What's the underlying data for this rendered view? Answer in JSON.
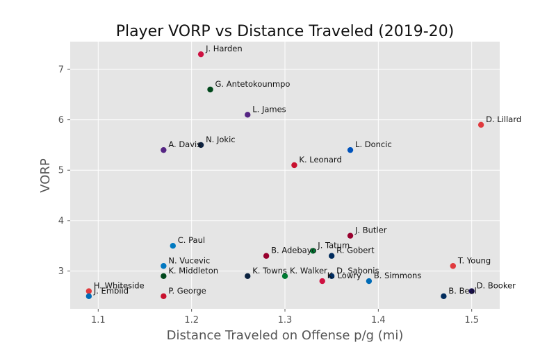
{
  "chart_data": {
    "type": "scatter",
    "title": "Player VORP vs Distance Traveled (2019-20)",
    "xlabel": "Distance Traveled on Offense p/g (mi)",
    "ylabel": "VORP",
    "xlim": [
      1.07,
      1.53
    ],
    "ylim": [
      2.25,
      7.55
    ],
    "xticks": [
      1.1,
      1.2,
      1.3,
      1.4,
      1.5
    ],
    "yticks": [
      3,
      4,
      5,
      6,
      7
    ],
    "xtick_labels": [
      "1.1",
      "1.2",
      "1.3",
      "1.4",
      "1.5"
    ],
    "ytick_labels": [
      "3",
      "4",
      "5",
      "6",
      "7"
    ],
    "grid": true,
    "points": [
      {
        "label": "J. Harden",
        "x": 1.21,
        "y": 7.3,
        "color": "#ce1141"
      },
      {
        "label": "G. Antetokounmpo",
        "x": 1.22,
        "y": 6.6,
        "color": "#00471b"
      },
      {
        "label": "L. James",
        "x": 1.26,
        "y": 6.1,
        "color": "#552583"
      },
      {
        "label": "D. Lillard",
        "x": 1.51,
        "y": 5.9,
        "color": "#e03a3e"
      },
      {
        "label": "A. Davis",
        "x": 1.17,
        "y": 5.4,
        "color": "#552583"
      },
      {
        "label": "N. Jokic",
        "x": 1.21,
        "y": 5.5,
        "color": "#0e2240"
      },
      {
        "label": "L. Doncic",
        "x": 1.37,
        "y": 5.4,
        "color": "#0053bc"
      },
      {
        "label": "K. Leonard",
        "x": 1.31,
        "y": 5.1,
        "color": "#c8102e"
      },
      {
        "label": "J. Butler",
        "x": 1.37,
        "y": 3.7,
        "color": "#98002e"
      },
      {
        "label": "C. Paul",
        "x": 1.18,
        "y": 3.5,
        "color": "#007ac1"
      },
      {
        "label": "J. Tatum",
        "x": 1.33,
        "y": 3.4,
        "color": "#007a33"
      },
      {
        "label": "B. Adebayo",
        "x": 1.28,
        "y": 3.3,
        "color": "#98002e"
      },
      {
        "label": "R. Gobert",
        "x": 1.35,
        "y": 3.3,
        "color": "#002b5c"
      },
      {
        "label": "N. Vucevic",
        "x": 1.17,
        "y": 3.1,
        "color": "#0077c0"
      },
      {
        "label": "T. Young",
        "x": 1.48,
        "y": 3.1,
        "color": "#e03a3e"
      },
      {
        "label": "K. Middleton",
        "x": 1.17,
        "y": 2.9,
        "color": "#00471b"
      },
      {
        "label": "K. Towns",
        "x": 1.26,
        "y": 2.9,
        "color": "#0c2340"
      },
      {
        "label": "K. Walker",
        "x": 1.3,
        "y": 2.9,
        "color": "#007a33"
      },
      {
        "label": "D. Sabonis",
        "x": 1.35,
        "y": 2.9,
        "color": "#002d62"
      },
      {
        "label": "K. Lowry",
        "x": 1.34,
        "y": 2.8,
        "color": "#ce1141"
      },
      {
        "label": "B. Simmons",
        "x": 1.39,
        "y": 2.8,
        "color": "#006bb6"
      },
      {
        "label": "H. Whiteside",
        "x": 1.09,
        "y": 2.6,
        "color": "#e03a3e"
      },
      {
        "label": "J. Embiid",
        "x": 1.09,
        "y": 2.5,
        "color": "#006bb6"
      },
      {
        "label": "P. George",
        "x": 1.17,
        "y": 2.5,
        "color": "#c8102e"
      },
      {
        "label": "B. Beal",
        "x": 1.47,
        "y": 2.5,
        "color": "#002b5c"
      },
      {
        "label": "D. Booker",
        "x": 1.5,
        "y": 2.6,
        "color": "#1d1160"
      }
    ]
  }
}
